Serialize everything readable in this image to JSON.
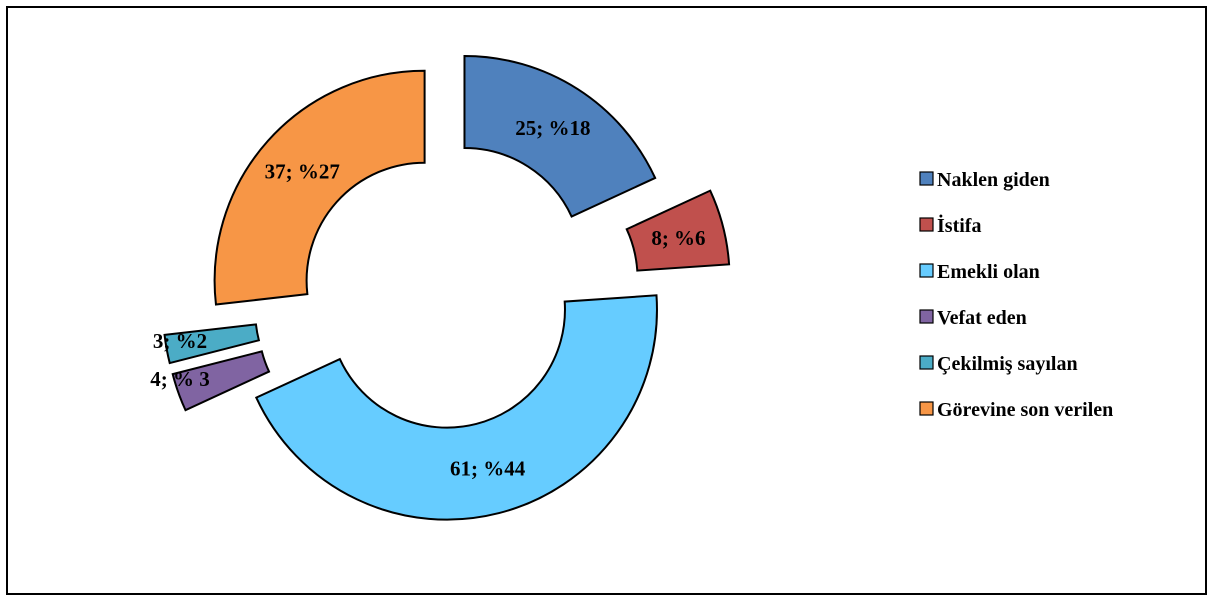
{
  "chart_data": {
    "type": "pie",
    "variant": "exploded-doughnut",
    "title": "",
    "legend_position": "right",
    "categories": [
      "Naklen giden",
      "İstifa",
      "Emekli olan",
      "Vefat eden",
      "Çekilmiş sayılan",
      "Görevine son verilen"
    ],
    "values": [
      25,
      8,
      61,
      4,
      3,
      37
    ],
    "percent_labels": [
      "%18",
      "%6",
      "%44",
      "% 3",
      "%2",
      "%27"
    ],
    "data_labels": [
      "25; %18",
      "8; %6",
      "61; %44",
      "4; % 3",
      "3; %2",
      "37; %27"
    ],
    "colors": [
      "#4F81BD",
      "#C0504D",
      "#66CCFF",
      "#8064A2",
      "#4BACC6",
      "#F79646"
    ]
  }
}
